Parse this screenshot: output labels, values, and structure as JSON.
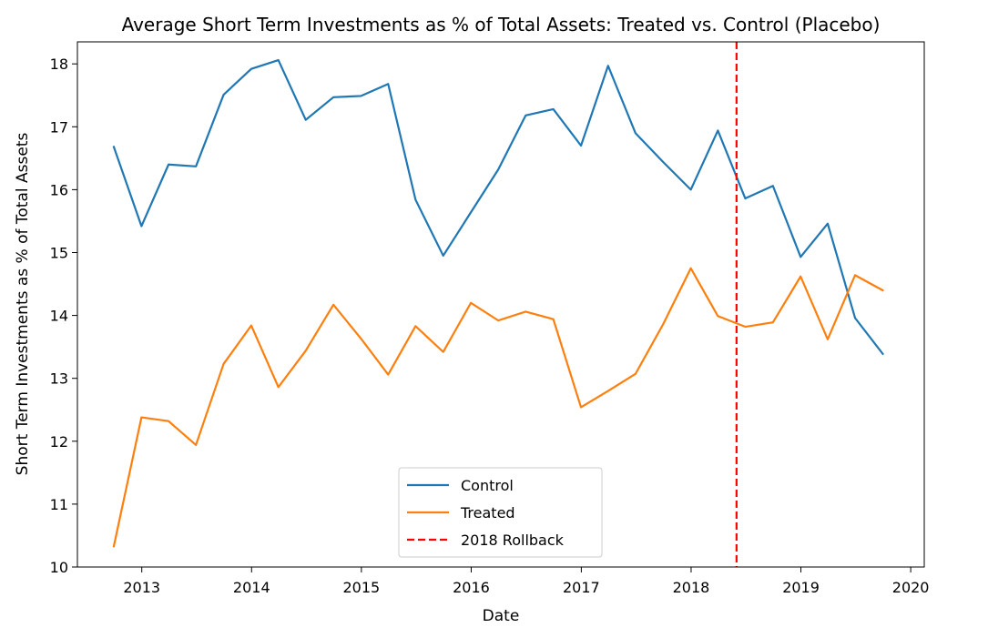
{
  "chart_data": {
    "type": "line",
    "title": "Average Short Term Investments as % of Total Assets: Treated vs. Control (Placebo)",
    "xlabel": "Date",
    "ylabel": "Short Term Investments as % of Total Assets",
    "xlim": [
      "2012-06-01",
      "2020-02-15"
    ],
    "ylim": [
      10,
      18.35
    ],
    "x_ticks": [
      "2013",
      "2014",
      "2015",
      "2016",
      "2017",
      "2018",
      "2019",
      "2020"
    ],
    "y_ticks": [
      "10",
      "11",
      "12",
      "13",
      "14",
      "15",
      "16",
      "17",
      "18"
    ],
    "x": [
      "2012-09-30",
      "2012-12-31",
      "2013-03-31",
      "2013-06-30",
      "2013-09-30",
      "2013-12-31",
      "2014-03-31",
      "2014-06-30",
      "2014-09-30",
      "2014-12-31",
      "2015-03-31",
      "2015-06-30",
      "2015-09-30",
      "2015-12-31",
      "2016-03-31",
      "2016-06-30",
      "2016-09-30",
      "2016-12-31",
      "2017-03-31",
      "2017-06-30",
      "2017-09-30",
      "2017-12-31",
      "2018-03-31",
      "2018-06-30",
      "2018-09-30",
      "2018-12-31",
      "2019-03-31",
      "2019-06-30",
      "2019-09-30"
    ],
    "series": [
      {
        "name": "Control",
        "color": "#1f77b4",
        "style": "solid",
        "values": [
          16.68,
          15.42,
          16.4,
          16.37,
          17.51,
          17.92,
          18.06,
          17.11,
          17.47,
          17.49,
          17.68,
          15.84,
          14.95,
          15.64,
          16.32,
          17.18,
          17.28,
          16.7,
          17.97,
          16.9,
          16.44,
          16.0,
          16.94,
          15.86,
          16.06,
          14.93,
          15.46,
          13.96,
          13.39
        ]
      },
      {
        "name": "Treated",
        "color": "#ff7f0e",
        "style": "solid",
        "values": [
          10.33,
          12.38,
          12.32,
          11.94,
          13.23,
          13.84,
          12.86,
          13.44,
          14.17,
          13.63,
          13.06,
          13.83,
          13.42,
          14.2,
          13.92,
          14.06,
          13.94,
          12.54,
          12.8,
          13.07,
          13.86,
          14.75,
          13.99,
          13.82,
          13.89,
          14.62,
          13.62,
          14.64,
          14.4
        ]
      }
    ],
    "vlines": [
      {
        "name": "2018 Rollback",
        "x": "2018-06-01",
        "color": "#ff0000",
        "style": "dashed"
      }
    ],
    "legend_labels": [
      "Control",
      "Treated",
      "2018 Rollback"
    ],
    "legend_position": "lower center",
    "grid": false
  }
}
